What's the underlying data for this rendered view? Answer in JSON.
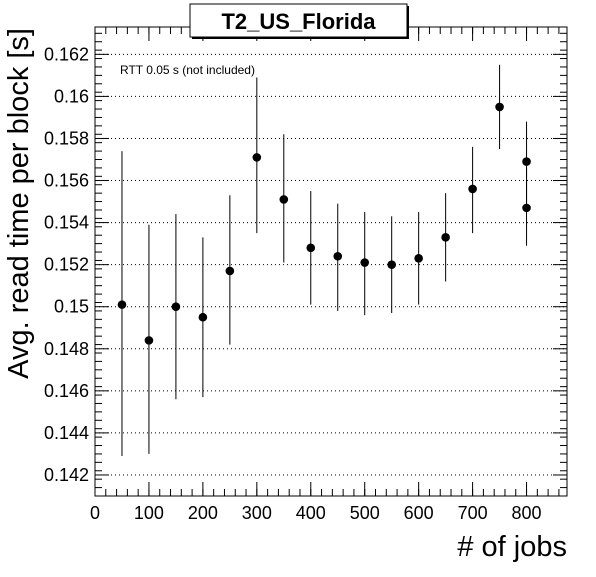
{
  "chart_data": {
    "type": "scatter",
    "title": "T2_US_Florida",
    "xlabel": "# of jobs",
    "ylabel": "Avg. read time per block [s]",
    "annotation": "RTT 0.05 s (not included)",
    "xlim": [
      0,
      875
    ],
    "ylim": [
      0.141,
      0.1633
    ],
    "x_ticks": [
      0,
      100,
      200,
      300,
      400,
      500,
      600,
      700,
      800
    ],
    "x_tick_labels": [
      "0",
      "100",
      "200",
      "300",
      "400",
      "500",
      "600",
      "700",
      "800"
    ],
    "y_ticks": [
      0.142,
      0.144,
      0.146,
      0.148,
      0.15,
      0.152,
      0.154,
      0.156,
      0.158,
      0.16,
      0.162
    ],
    "y_tick_labels": [
      "0.142",
      "0.144",
      "0.146",
      "0.148",
      "0.15",
      "0.152",
      "0.154",
      "0.156",
      "0.158",
      "0.16",
      "0.162"
    ],
    "grid": "horizontal dotted",
    "legend": "none",
    "marker_color": "#000000",
    "series": [
      {
        "points": [
          {
            "x": 50,
            "y": 0.1501,
            "ylow": 0.1429,
            "yhigh": 0.1574
          },
          {
            "x": 100,
            "y": 0.1484,
            "ylow": 0.143,
            "yhigh": 0.1539
          },
          {
            "x": 150,
            "y": 0.15,
            "ylow": 0.1456,
            "yhigh": 0.1544
          },
          {
            "x": 200,
            "y": 0.1495,
            "ylow": 0.1457,
            "yhigh": 0.1533
          },
          {
            "x": 250,
            "y": 0.1517,
            "ylow": 0.1482,
            "yhigh": 0.1553
          },
          {
            "x": 300,
            "y": 0.1571,
            "ylow": 0.1535,
            "yhigh": 0.1609
          },
          {
            "x": 350,
            "y": 0.1551,
            "ylow": 0.1521,
            "yhigh": 0.1582
          },
          {
            "x": 400,
            "y": 0.1528,
            "ylow": 0.1501,
            "yhigh": 0.1555
          },
          {
            "x": 450,
            "y": 0.1524,
            "ylow": 0.1498,
            "yhigh": 0.1549
          },
          {
            "x": 500,
            "y": 0.1521,
            "ylow": 0.1496,
            "yhigh": 0.1545
          },
          {
            "x": 550,
            "y": 0.152,
            "ylow": 0.1497,
            "yhigh": 0.1543
          },
          {
            "x": 600,
            "y": 0.1523,
            "ylow": 0.1501,
            "yhigh": 0.1545
          },
          {
            "x": 650,
            "y": 0.1533,
            "ylow": 0.1512,
            "yhigh": 0.1554
          },
          {
            "x": 700,
            "y": 0.1556,
            "ylow": 0.1535,
            "yhigh": 0.1576
          },
          {
            "x": 750,
            "y": 0.1595,
            "ylow": 0.1575,
            "yhigh": 0.1615
          },
          {
            "x": 800,
            "y": 0.1569,
            "ylow": 0.1549,
            "yhigh": 0.1588
          },
          {
            "x": 800,
            "y": 0.1547,
            "ylow": 0.1529,
            "yhigh": 0.1566
          }
        ]
      }
    ]
  }
}
